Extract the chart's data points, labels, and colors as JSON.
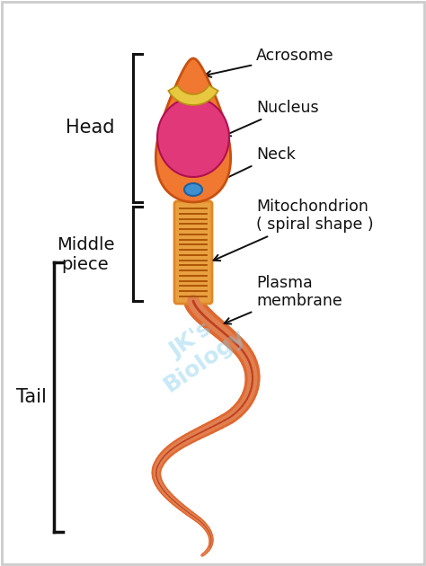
{
  "bg_color": "#ffffff",
  "border_color": "#cccccc",
  "head_color": "#f07830",
  "head_outline": "#c85010",
  "acrosome_color": "#e8c840",
  "acrosome_outline": "#b89010",
  "nucleus_color": "#e03878",
  "nucleus_outline": "#b01050",
  "neck_color": "#4090d0",
  "neck_outline": "#2060a0",
  "midpiece_outer": "#e08828",
  "midpiece_fill": "#e8a040",
  "midpiece_lines": "#a85000",
  "tail_outer": "#e06830",
  "tail_mid": "#e08050",
  "tail_inner": "#c04020",
  "label_color": "#111111",
  "bracket_color": "#111111",
  "watermark_color": "#87ceeb",
  "labels": {
    "acrosome": "Acrosome",
    "nucleus": "Nucleus",
    "neck": "Neck",
    "mitochondrion": "Mitochondrion\n( spiral shape )",
    "plasma_membrane": "Plasma\nmembrane",
    "head": "Head",
    "middle_piece": "Middle\npiece",
    "tail": "Tail"
  },
  "figsize": [
    4.74,
    6.3
  ],
  "dpi": 100
}
